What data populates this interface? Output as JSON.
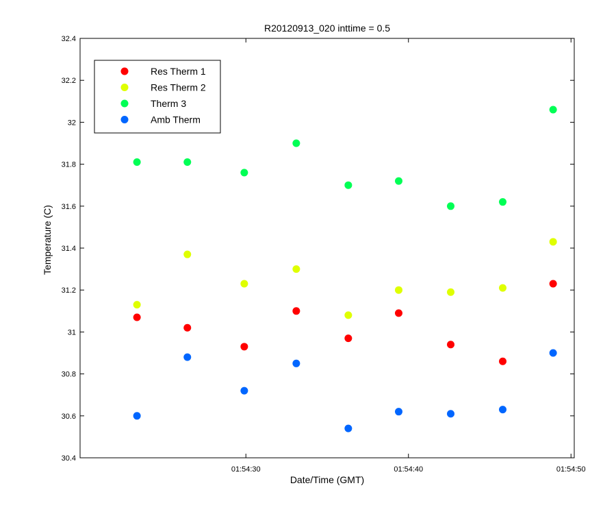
{
  "chart_data": {
    "type": "scatter",
    "title": "R20120913_020 inttime = 0.5",
    "xlabel": "Date/Time (GMT)",
    "ylabel": "Temperature (C)",
    "xlim": [
      "01:54:19.8",
      "01:54:50.2"
    ],
    "ylim": [
      30.4,
      32.4
    ],
    "yticks": [
      30.4,
      30.6,
      30.8,
      31,
      31.2,
      31.4,
      31.6,
      31.8,
      32,
      32.2,
      32.4
    ],
    "yticklabels": [
      "30.4",
      "30.6",
      "30.8",
      "31",
      "31.2",
      "31.4",
      "31.6",
      "31.8",
      "32",
      "32.2",
      "32.4"
    ],
    "xticks": [
      "01:54:30",
      "01:54:40",
      "01:54:50"
    ],
    "grid": false,
    "legend_position": "top-left",
    "x": [
      "01:54:23.3",
      "01:54:26.4",
      "01:54:29.9",
      "01:54:33.1",
      "01:54:36.3",
      "01:54:39.4",
      "01:54:42.6",
      "01:54:45.8",
      "01:54:48.9"
    ],
    "series": [
      {
        "name": "Res Therm 1",
        "color": "#ff0000",
        "values": [
          31.07,
          31.02,
          30.93,
          31.1,
          30.97,
          31.09,
          30.94,
          30.86,
          31.23
        ]
      },
      {
        "name": "Res Therm 2",
        "color": "#dfff00",
        "values": [
          31.13,
          31.37,
          31.23,
          31.3,
          31.08,
          31.2,
          31.19,
          31.21,
          31.43
        ]
      },
      {
        "name": "Therm 3",
        "color": "#00ff55",
        "values": [
          31.81,
          31.81,
          31.76,
          31.9,
          31.7,
          31.72,
          31.6,
          31.62,
          32.06
        ]
      },
      {
        "name": "Amb Therm",
        "color": "#0066ff",
        "values": [
          30.6,
          30.88,
          30.72,
          30.85,
          30.54,
          30.62,
          30.61,
          30.63,
          30.9
        ]
      }
    ]
  }
}
